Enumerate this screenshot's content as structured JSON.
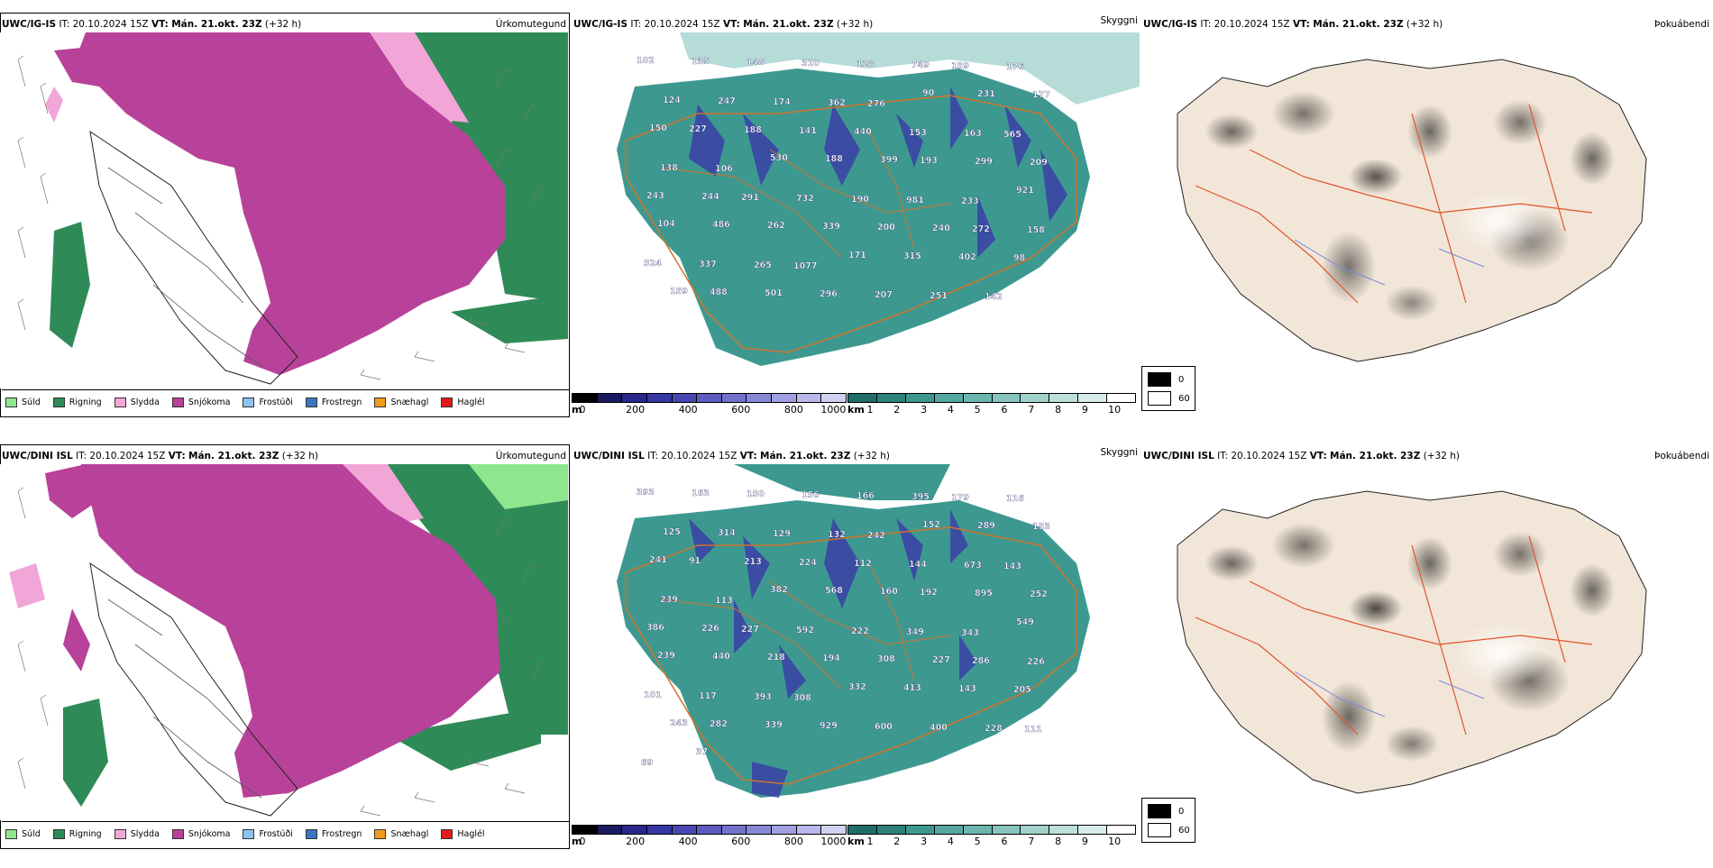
{
  "rows": [
    {
      "model": "UWC/IG-IS",
      "init_label": "IT:",
      "init_time": "20.10.2024 15Z",
      "valid_label": "VT:",
      "valid_time": "Mán. 21.okt. 23Z",
      "lead": "(+32 h)",
      "cloud_labels": [
        "102",
        "135",
        "148",
        "310",
        "128",
        "749",
        "159",
        "176",
        "124",
        "247",
        "174",
        "362",
        "276",
        "90",
        "231",
        "177",
        "150",
        "227",
        "188",
        "141",
        "440",
        "153",
        "163",
        "565",
        "138",
        "106",
        "530",
        "188",
        "399",
        "193",
        "299",
        "209",
        "243",
        "244",
        "291",
        "732",
        "190",
        "981",
        "233",
        "921",
        "104",
        "486",
        "262",
        "339",
        "200",
        "240",
        "272",
        "158",
        "524",
        "337",
        "265",
        "1077",
        "171",
        "315",
        "402",
        "98",
        "159",
        "488",
        "501",
        "296",
        "207",
        "251",
        "142"
      ]
    },
    {
      "model": "UWC/DINI ISL",
      "init_label": "IT:",
      "init_time": "20.10.2024 15Z",
      "valid_label": "VT:",
      "valid_time": "Mán. 21.okt. 23Z",
      "lead": "(+32 h)",
      "cloud_labels": [
        "393",
        "163",
        "150",
        "156",
        "166",
        "395",
        "179",
        "116",
        "125",
        "314",
        "129",
        "132",
        "242",
        "152",
        "289",
        "153",
        "241",
        "91",
        "213",
        "224",
        "112",
        "144",
        "673",
        "143",
        "239",
        "113",
        "382",
        "568",
        "160",
        "192",
        "895",
        "252",
        "386",
        "226",
        "227",
        "592",
        "222",
        "349",
        "343",
        "549",
        "239",
        "440",
        "218",
        "194",
        "308",
        "227",
        "286",
        "226",
        "101",
        "117",
        "393",
        "308",
        "332",
        "413",
        "143",
        "205",
        "243",
        "282",
        "339",
        "929",
        "600",
        "400",
        "228",
        "111",
        "69",
        "37"
      ]
    }
  ],
  "panel_titles": {
    "precip": "Úrkomutegund",
    "cloud": "Skyggni",
    "fog": "Þokuábendi"
  },
  "precip_legend": [
    {
      "label": "Súld",
      "color": "#8ee68e"
    },
    {
      "label": "Rigning",
      "color": "#2e8b57"
    },
    {
      "label": "Slydda",
      "color": "#f2a6d8"
    },
    {
      "label": "Snjókoma",
      "color": "#b8429a"
    },
    {
      "label": "Frostúði",
      "color": "#8ec2f2"
    },
    {
      "label": "Frostregn",
      "color": "#3a76c2"
    },
    {
      "label": "Snæhagl",
      "color": "#f29a1a"
    },
    {
      "label": "Haglél",
      "color": "#e31a1a"
    }
  ],
  "terrain_bar": {
    "unit": "m",
    "ticks": [
      "0",
      "200",
      "400",
      "600",
      "800",
      "1000"
    ]
  },
  "ceiling_bar": {
    "unit": "km",
    "ticks": [
      "1",
      "2",
      "3",
      "4",
      "5",
      "6",
      "7",
      "8",
      "9",
      "10"
    ]
  },
  "fog_legend": [
    "0",
    "60"
  ],
  "colors": {
    "snow": "#b8429a",
    "rain": "#2e8b57",
    "sleet": "#f2a6d8",
    "drizzle": "#8ee68e",
    "cloud": "#3d9990",
    "terrain_beige": "#f2e6d8"
  }
}
